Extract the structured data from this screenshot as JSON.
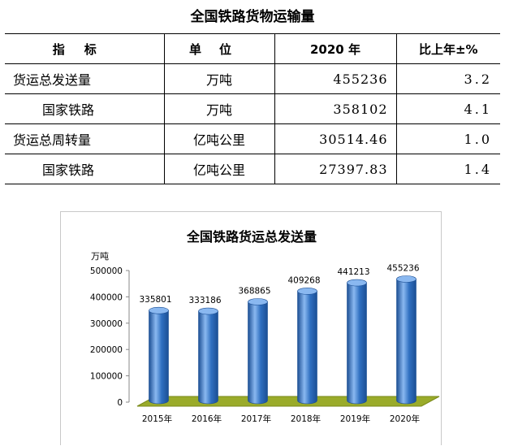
{
  "title": "全国铁路货物运输量",
  "table": {
    "headers": [
      "指标",
      "单位",
      "2020 年",
      "比上年±%"
    ],
    "rows": [
      {
        "indicator": "货运总发送量",
        "unit": "万吨",
        "value": "455236",
        "change": "3.2",
        "sub": false
      },
      {
        "indicator": "国家铁路",
        "unit": "万吨",
        "value": "358102",
        "change": "4.1",
        "sub": true
      },
      {
        "indicator": "货运总周转量",
        "unit": "亿吨公里",
        "value": "30514.46",
        "change": "1.0",
        "sub": false
      },
      {
        "indicator": "国家铁路",
        "unit": "亿吨公里",
        "value": "27397.83",
        "change": "1.4",
        "sub": true
      }
    ]
  },
  "chart_data": {
    "type": "bar",
    "title": "全国铁路货运总发送量",
    "ylabel": "万吨",
    "categories": [
      "2015年",
      "2016年",
      "2017年",
      "2018年",
      "2019年",
      "2020年"
    ],
    "values": [
      335801,
      333186,
      368865,
      409268,
      441213,
      455236
    ],
    "ylim": [
      0,
      500000
    ],
    "yticks": [
      0,
      100000,
      200000,
      300000,
      400000,
      500000
    ],
    "grid": false,
    "legend": "none",
    "colors": {
      "bar": "#2f6fc0",
      "bar_light": "#8ab8f0",
      "bar_dark": "#1c4f94",
      "floor": "#9aab2a",
      "floor_edge": "#7a8a1a"
    }
  }
}
